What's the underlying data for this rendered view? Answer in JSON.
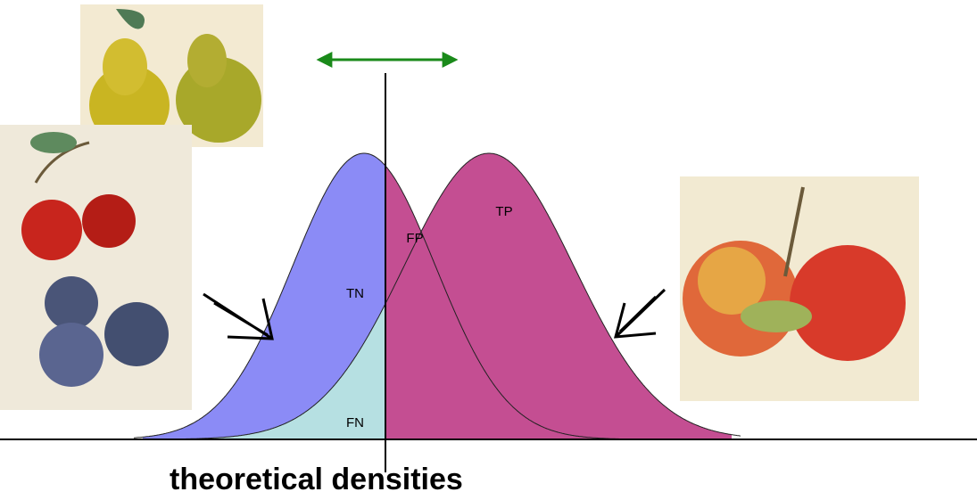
{
  "regions": {
    "tn": "TN",
    "fp": "FP",
    "fn": "FN",
    "tp": "TP"
  },
  "caption": "theoretical densities"
}
